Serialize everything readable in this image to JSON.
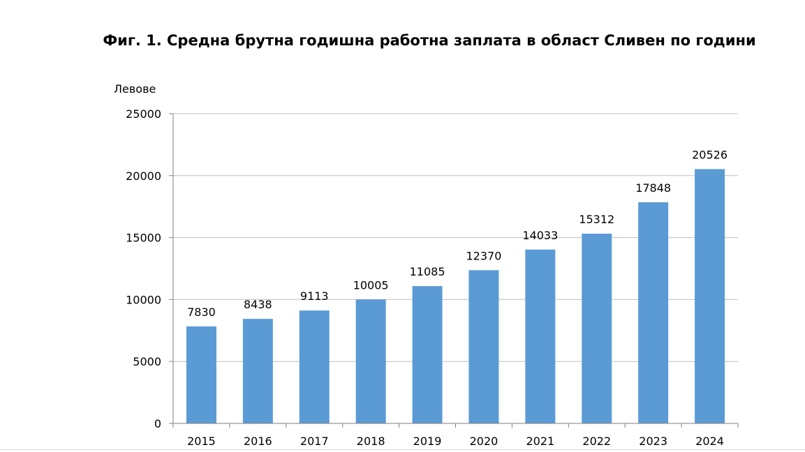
{
  "chart_data": {
    "type": "bar",
    "title": "Фиг. 1. Средна брутна годишна работна заплата в област Сливен по години",
    "ylabel": "Левове",
    "xlabel": "",
    "categories": [
      "2015",
      "2016",
      "2017",
      "2018",
      "2019",
      "2020",
      "2021",
      "2022",
      "2023",
      "2024"
    ],
    "values": [
      7830,
      8438,
      9113,
      10005,
      11085,
      12370,
      14033,
      15312,
      17848,
      20526
    ],
    "data_labels": [
      "7830",
      "8438",
      "9113",
      "10005",
      "11085",
      "12370",
      "14033",
      "15312",
      "17848",
      "20526"
    ],
    "ylim": [
      0,
      25000
    ],
    "yticks": [
      0,
      5000,
      10000,
      15000,
      20000,
      25000
    ],
    "ytick_labels": [
      "0",
      "5000",
      "10000",
      "15000",
      "20000",
      "25000"
    ],
    "grid": true,
    "legend": "none",
    "bar_color": "#5b9bd5",
    "grid_color": "#bfbfbf"
  }
}
